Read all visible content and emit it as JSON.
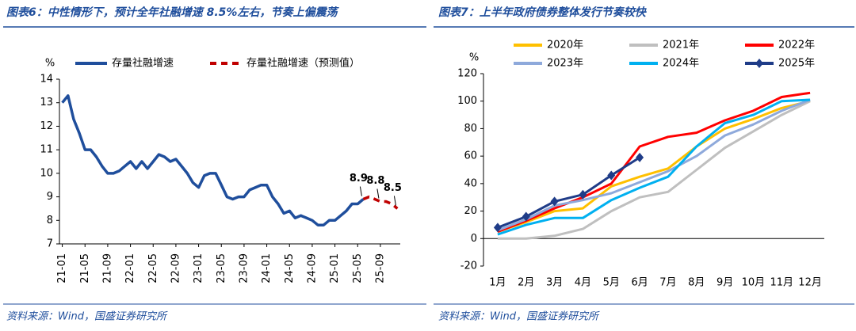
{
  "chart_data": [
    {
      "type": "line",
      "title": "图表6：中性情形下，预计全年社融增速 8.5%左右，节奏上偏震荡",
      "source": "资料来源：Wind，国盛证券研究所",
      "y_label": "%",
      "categories": [
        "21-01",
        null,
        null,
        null,
        "21-05",
        null,
        null,
        null,
        "21-09",
        null,
        null,
        null,
        "22-01",
        null,
        null,
        null,
        "22-05",
        null,
        null,
        null,
        "22-09",
        null,
        null,
        null,
        "23-01",
        null,
        null,
        null,
        "23-05",
        null,
        null,
        null,
        "23-09",
        null,
        null,
        null,
        "24-01",
        null,
        null,
        null,
        "24-05",
        null,
        null,
        null,
        "24-09",
        null,
        null,
        null,
        "25-01",
        null,
        null,
        null,
        "25-05",
        null,
        null,
        null,
        "25-09",
        null,
        null,
        null
      ],
      "ylim": [
        7,
        14
      ],
      "yticks": [
        7,
        8,
        9,
        10,
        11,
        12,
        13,
        14
      ],
      "series": [
        {
          "name": "存量社融增速",
          "color": "#1f4e9c",
          "dash": false,
          "values": [
            13.0,
            13.3,
            12.3,
            11.7,
            11.0,
            11.0,
            10.7,
            10.3,
            10.0,
            10.0,
            10.1,
            10.3,
            10.5,
            10.2,
            10.5,
            10.2,
            10.5,
            10.8,
            10.7,
            10.5,
            10.6,
            10.3,
            10.0,
            9.6,
            9.4,
            9.9,
            10.0,
            10.0,
            9.5,
            9.0,
            8.9,
            9.0,
            9.0,
            9.3,
            9.4,
            9.5,
            9.5,
            9.0,
            8.7,
            8.3,
            8.4,
            8.1,
            8.2,
            8.1,
            8.0,
            7.8,
            7.8,
            8.0,
            8.0,
            8.2,
            8.4,
            8.7,
            8.7,
            8.9,
            null,
            null,
            null,
            null,
            null,
            null
          ]
        },
        {
          "name": "存量社融增速（预测值）",
          "color": "#c00000",
          "dash": true,
          "values": [
            null,
            null,
            null,
            null,
            null,
            null,
            null,
            null,
            null,
            null,
            null,
            null,
            null,
            null,
            null,
            null,
            null,
            null,
            null,
            null,
            null,
            null,
            null,
            null,
            null,
            null,
            null,
            null,
            null,
            null,
            null,
            null,
            null,
            null,
            null,
            null,
            null,
            null,
            null,
            null,
            null,
            null,
            null,
            null,
            null,
            null,
            null,
            null,
            null,
            null,
            null,
            null,
            null,
            8.9,
            9.0,
            8.9,
            8.8,
            8.8,
            8.7,
            8.5
          ],
          "value_labels": [
            null,
            null,
            null,
            null,
            null,
            null,
            null,
            null,
            null,
            null,
            null,
            null,
            null,
            null,
            null,
            null,
            null,
            null,
            null,
            null,
            null,
            null,
            null,
            null,
            null,
            null,
            null,
            null,
            null,
            null,
            null,
            null,
            null,
            null,
            null,
            null,
            null,
            null,
            null,
            null,
            null,
            null,
            null,
            null,
            null,
            null,
            null,
            null,
            null,
            null,
            null,
            null,
            null,
            "8.9",
            null,
            null,
            "8.8",
            null,
            null,
            "8.5"
          ]
        }
      ]
    },
    {
      "type": "line",
      "title": "图表7：上半年政府债券整体发行节奏较快",
      "source": "资料来源：Wind，国盛证券研究所",
      "y_label": "%",
      "categories": [
        "1月",
        "2月",
        "3月",
        "4月",
        "5月",
        "6月",
        "7月",
        "8月",
        "9月",
        "10月",
        "11月",
        "12月"
      ],
      "ylim": [
        -20,
        120
      ],
      "yticks": [
        -20,
        0,
        20,
        40,
        60,
        80,
        100,
        120
      ],
      "series": [
        {
          "name": "2020年",
          "color": "#ffc000",
          "values": [
            5,
            12,
            20,
            22,
            38,
            45,
            51,
            67,
            80,
            87,
            95,
            100
          ]
        },
        {
          "name": "2021年",
          "color": "#bfbfbf",
          "values": [
            0,
            0,
            2,
            7,
            20,
            30,
            34,
            50,
            66,
            78,
            90,
            100
          ]
        },
        {
          "name": "2022年",
          "color": "#ff0000",
          "values": [
            5,
            13,
            22,
            30,
            40,
            67,
            74,
            77,
            86,
            93,
            103,
            106
          ]
        },
        {
          "name": "2023年",
          "color": "#8ea9db",
          "values": [
            6,
            14,
            24,
            28,
            33,
            41,
            49,
            60,
            75,
            83,
            93,
            101
          ]
        },
        {
          "name": "2024年",
          "color": "#00b0f0",
          "values": [
            3,
            10,
            15,
            15,
            28,
            37,
            45,
            67,
            84,
            90,
            100,
            101
          ]
        },
        {
          "name": "2025年",
          "color": "#1f3c88",
          "marker": "diamond",
          "values": [
            8,
            16,
            27,
            32,
            46,
            59,
            null,
            null,
            null,
            null,
            null,
            null
          ]
        }
      ]
    }
  ]
}
